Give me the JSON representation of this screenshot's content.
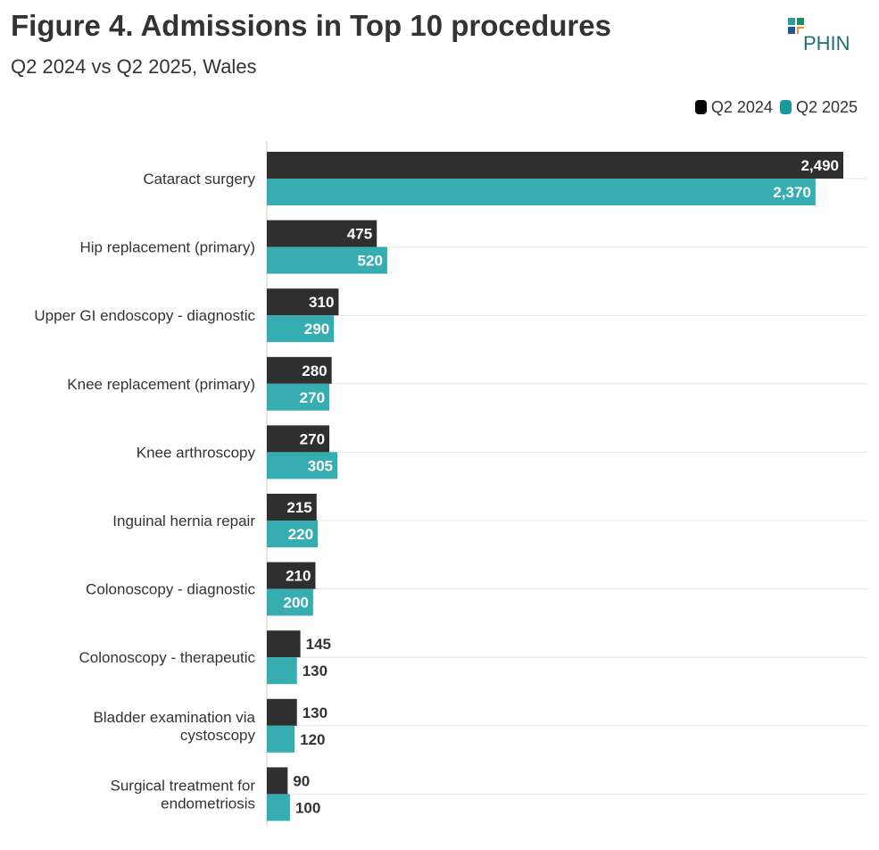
{
  "title": "Figure 4. Admissions in Top 10 procedures",
  "subtitle": "Q2 2024 vs Q2 2025, Wales",
  "logo_text": "PHIN",
  "colors": {
    "q2_2024": "#2f2f2f",
    "q2_2025": "#35adb1",
    "text": "#333333",
    "grid": "#e6e6e6"
  },
  "chart_data": {
    "type": "bar",
    "orientation": "horizontal",
    "categories": [
      "Cataract surgery",
      "Hip replacement (primary)",
      "Upper GI endoscopy - diagnostic",
      "Knee replacement (primary)",
      "Knee arthroscopy",
      "Inguinal hernia repair",
      "Colonoscopy - diagnostic",
      "Colonoscopy - therapeutic",
      "Bladder examination via cystoscopy",
      "Surgical treatment for endometriosis"
    ],
    "category_lines": [
      [
        "Cataract surgery"
      ],
      [
        "Hip replacement (primary)"
      ],
      [
        "Upper GI endoscopy - diagnostic"
      ],
      [
        "Knee replacement (primary)"
      ],
      [
        "Knee arthroscopy"
      ],
      [
        "Inguinal hernia repair"
      ],
      [
        "Colonoscopy - diagnostic"
      ],
      [
        "Colonoscopy - therapeutic"
      ],
      [
        "Bladder examination via",
        "cystoscopy"
      ],
      [
        "Surgical treatment for",
        "endometriosis"
      ]
    ],
    "series": [
      {
        "name": "Q2 2024",
        "values": [
          2490,
          475,
          310,
          280,
          270,
          215,
          210,
          145,
          130,
          90
        ],
        "labels": [
          "2,490",
          "475",
          "310",
          "280",
          "270",
          "215",
          "210",
          "145",
          "130",
          "90"
        ]
      },
      {
        "name": "Q2 2025",
        "values": [
          2370,
          520,
          290,
          270,
          305,
          220,
          200,
          130,
          120,
          100
        ],
        "labels": [
          "2,370",
          "520",
          "290",
          "270",
          "305",
          "220",
          "200",
          "130",
          "120",
          "100"
        ]
      }
    ],
    "xlim": [
      0,
      2610
    ],
    "legend": "top-right",
    "grid": true
  }
}
